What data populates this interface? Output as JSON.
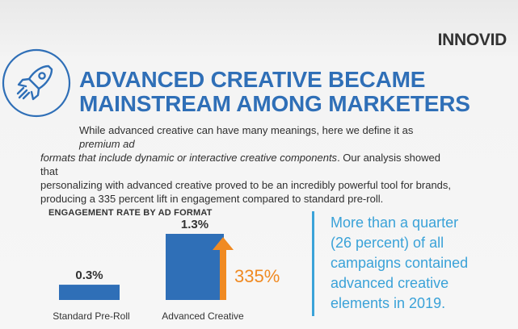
{
  "brand": {
    "logo_text": "INNOVID",
    "accent_color": "#2f6fb7",
    "callout_color": "#3aa2d8",
    "arrow_color": "#f08a22",
    "icon": "rocket-icon"
  },
  "headline": {
    "line1": "ADVANCED CREATIVE BECAME",
    "line2": "MAINSTREAM AMONG MARKETERS"
  },
  "intro": {
    "l1_plain": "While advanced creative can have many meanings, here we define it as ",
    "l1_em": "premium ad",
    "l2_em": "formats that include dynamic or interactive creative components",
    "l2_plain": ". Our analysis showed that",
    "l3": "personalizing with advanced creative proved to be an incredibly powerful tool for brands,",
    "l4": "producing a 335 percent lift in engagement compared to standard pre-roll."
  },
  "callout": {
    "line1": "More than a quarter",
    "line2": "(26 percent) of all",
    "line3": "campaigns contained",
    "line4": "advanced creative",
    "line5": "elements in 2019."
  },
  "chart_data": {
    "type": "bar",
    "title": "ENGAGEMENT RATE BY AD FORMAT",
    "categories": [
      "Standard Pre-Roll",
      "Advanced Creative"
    ],
    "values": [
      0.3,
      1.3
    ],
    "data_labels": [
      "0.3%",
      "1.3%"
    ],
    "lift_label": "335%",
    "bar_color": "#2f6fb7",
    "ylim": [
      0,
      1.3
    ],
    "grid": false
  }
}
